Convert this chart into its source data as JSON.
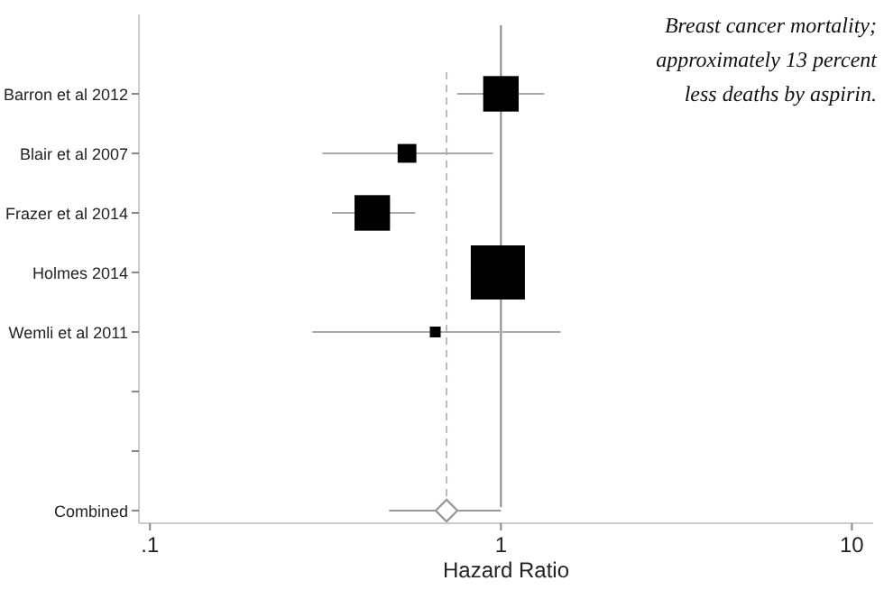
{
  "chart_data": {
    "type": "bubble",
    "orientation": "horizontal",
    "xlabel": "Hazard Ratio",
    "categories": [
      "Barron et al 2012",
      "Blair et al 2007",
      "Frazer et al 2014",
      "Holmes 2014",
      "Wemli et al 2011",
      null,
      null,
      "Combined"
    ],
    "series": [
      {
        "color": "#000000",
        "values": [
          1.0,
          0.54,
          0.43,
          0.98,
          0.65,
          null,
          null,
          null
        ],
        "sizes": [
          0.43,
          0.12,
          0.43,
          1,
          0.04,
          null,
          null,
          null
        ],
        "errors": [
          [
            0.75,
            1.33
          ],
          [
            0.31,
            0.95
          ],
          [
            0.33,
            0.57
          ],
          [
            0.82,
            1.17
          ],
          [
            0.29,
            1.48
          ],
          null,
          null,
          null
        ]
      },
      {
        "type": "scatter",
        "marker": "diamond",
        "color": "#999999",
        "values": [
          null,
          null,
          null,
          null,
          null,
          null,
          null,
          0.7
        ],
        "errors": [
          null,
          null,
          null,
          null,
          null,
          null,
          null,
          [
            0.48,
            1.0
          ]
        ]
      }
    ],
    "log": "x",
    "xlim": [
      0.093,
      11.5
    ],
    "xticks": [
      {
        "value": 0.1,
        "label": ".1"
      },
      1,
      10
    ],
    "ref_lines": [
      {
        "axis": "x",
        "value": 1,
        "color": "#888888",
        "line_style": "solid"
      },
      {
        "axis": "x",
        "value": 0.7,
        "color": "#bbbbbb",
        "line_style": "dashed"
      }
    ],
    "annotations": [
      "Breast cancer mortality; approximately 13 percent less deaths by aspirin."
    ],
    "grid": false
  }
}
